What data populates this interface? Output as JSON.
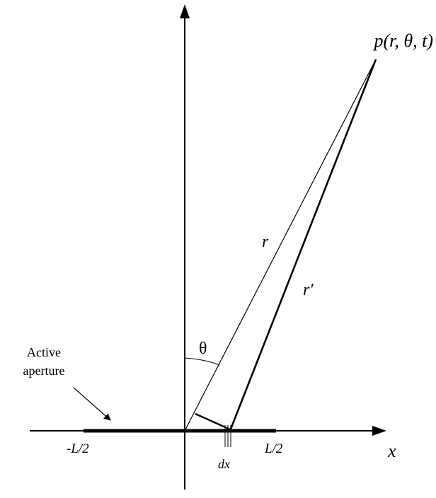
{
  "labels": {
    "point": "p(r, θ, t)",
    "r": "r",
    "r_prime": "r′",
    "theta": "θ",
    "active_aperture_line1": "Active",
    "active_aperture_line2": "aperture",
    "neg_half_l": "-L/2",
    "pos_half_l": "L/2",
    "dx": "dx",
    "x_axis": "x"
  }
}
